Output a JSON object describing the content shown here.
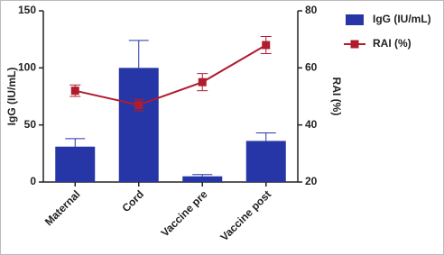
{
  "chart_data": {
    "type": "bar",
    "categories": [
      "Maternal",
      "Cord",
      "Vaccine pre",
      "Vaccine post"
    ],
    "y_label": "IgG (IU/mL)",
    "y2_label": "RAI (%)",
    "ylim": [
      0,
      150
    ],
    "yticks": [
      0,
      50,
      100,
      150
    ],
    "y2lim": [
      20,
      80
    ],
    "y2ticks": [
      20,
      40,
      60,
      80
    ],
    "legend": "top-right",
    "series": [
      {
        "name": "IgG (IU/mL)",
        "type": "bar",
        "color": "#2636a6",
        "values": [
          31,
          100,
          5,
          36
        ],
        "errors": [
          7,
          24,
          1.5,
          7
        ]
      },
      {
        "name": "RAI (%)",
        "type": "line",
        "axis": "y2",
        "color": "#b01c2e",
        "values": [
          52,
          47,
          55,
          68
        ],
        "errors": [
          2,
          2,
          3,
          3
        ]
      }
    ]
  }
}
